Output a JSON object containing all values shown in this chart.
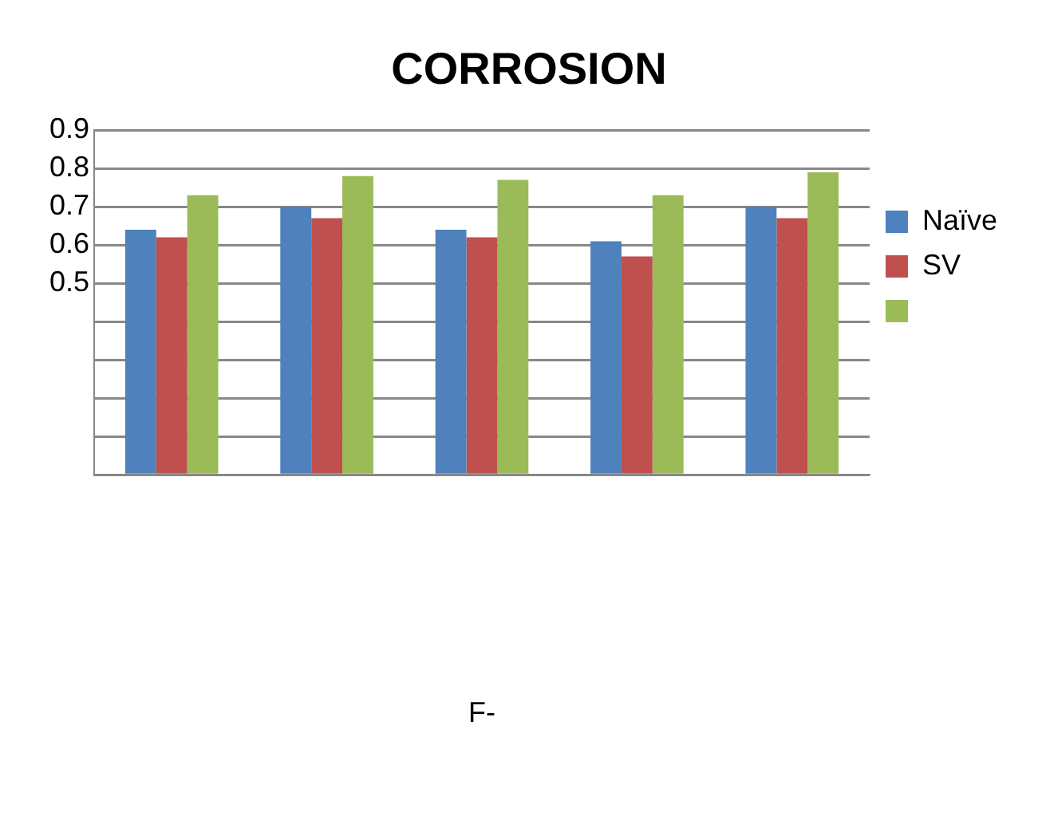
{
  "chart_data": {
    "type": "bar",
    "title": "CORROSION",
    "annotations": [
      "F-"
    ],
    "categories": [
      null,
      null,
      null,
      null,
      null
    ],
    "series": [
      {
        "name": "Naïve",
        "color": "#4f81bd",
        "values": [
          0.64,
          0.7,
          0.64,
          0.61,
          0.7
        ]
      },
      {
        "name": "SV",
        "color": "#c0504d",
        "values": [
          0.62,
          0.67,
          0.62,
          0.57,
          0.67
        ]
      },
      {
        "color": "#9bbb59",
        "values": [
          0.73,
          0.78,
          0.77,
          0.73,
          0.79
        ]
      }
    ],
    "ylim": [
      0,
      0.9
    ],
    "yticks": [
      {
        "value": 0,
        "label": null
      },
      {
        "value": 0.1,
        "label": null
      },
      {
        "value": 0.2,
        "label": null
      },
      {
        "value": 0.3,
        "label": null
      },
      {
        "value": 0.4,
        "label": null
      },
      0.5,
      0.6,
      0.7,
      0.8,
      0.9
    ],
    "grid": "y",
    "legend": "right"
  }
}
